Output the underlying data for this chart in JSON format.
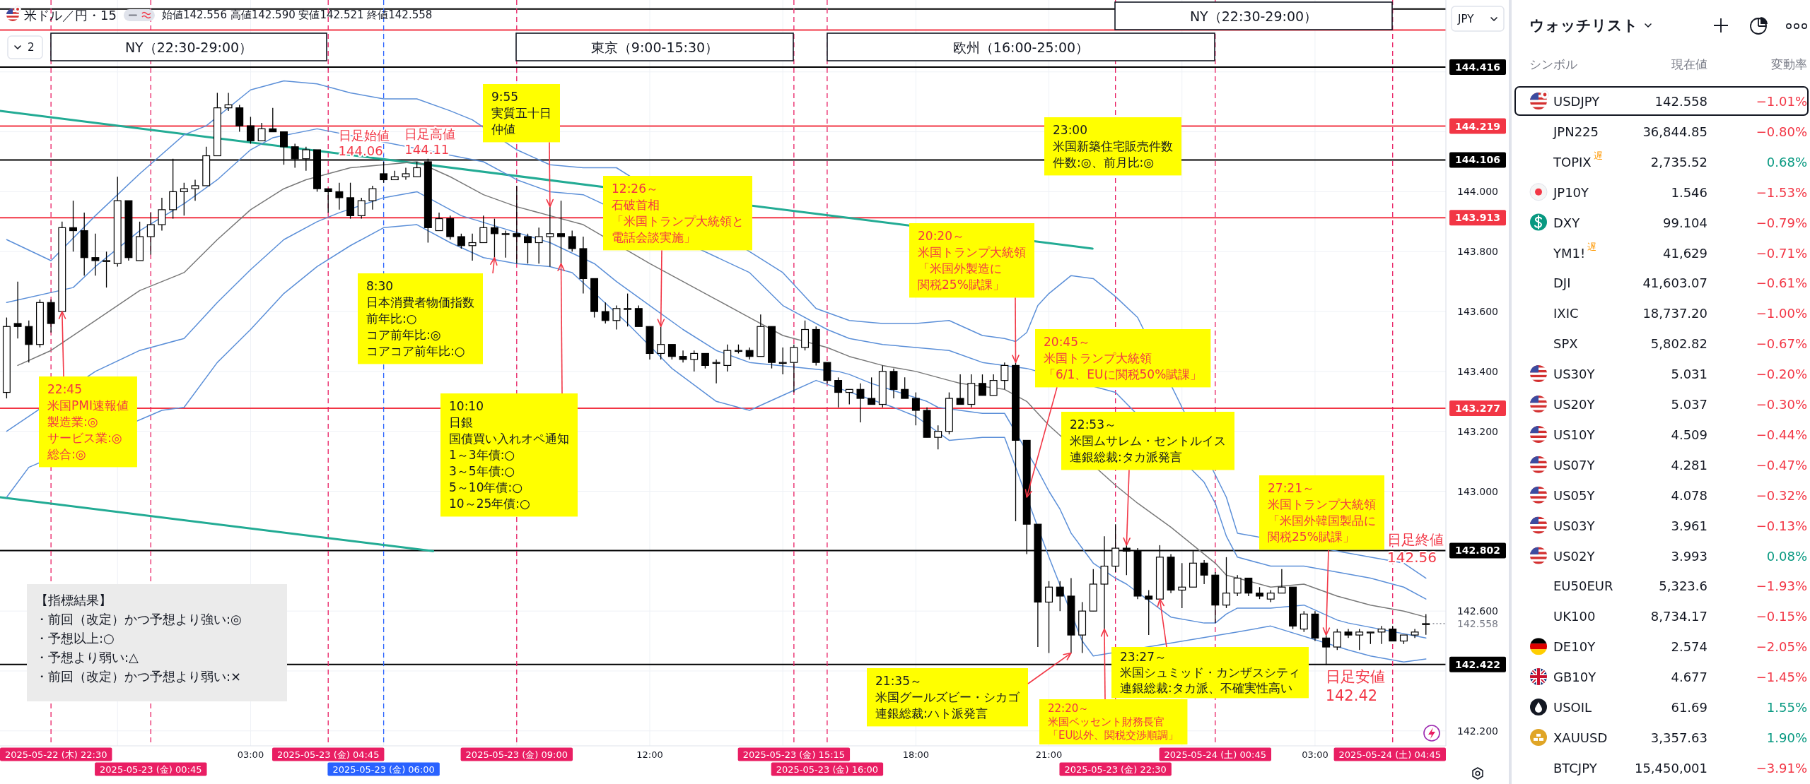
{
  "chart_data": [
    {
      "type": "candlestick",
      "title": "米ドル／円・15",
      "subtitle": "始値142.556 高値142.590 安値142.521 終値142.558",
      "ylabel": "JPY",
      "x": [
        "2025-05-22T21:30",
        "2025-05-22T21:45",
        "2025-05-22T22:00",
        "2025-05-22T22:15",
        "2025-05-22T22:30",
        "2025-05-22T22:45",
        "2025-05-22T23:00",
        "2025-05-22T23:15",
        "2025-05-22T23:30",
        "2025-05-22T23:45",
        "2025-05-23T00:00",
        "2025-05-23T00:15",
        "2025-05-23T00:30",
        "2025-05-23T00:45",
        "2025-05-23T01:00",
        "2025-05-23T01:15",
        "2025-05-23T01:30",
        "2025-05-23T01:45",
        "2025-05-23T02:00",
        "2025-05-23T02:15",
        "2025-05-23T02:30",
        "2025-05-23T02:45",
        "2025-05-23T03:00",
        "2025-05-23T03:15",
        "2025-05-23T03:30",
        "2025-05-23T03:45",
        "2025-05-23T04:00",
        "2025-05-23T04:15",
        "2025-05-23T04:30",
        "2025-05-23T04:45",
        "2025-05-23T05:00",
        "2025-05-23T05:15",
        "2025-05-23T05:30",
        "2025-05-23T05:45",
        "2025-05-23T06:00",
        "2025-05-23T06:15",
        "2025-05-23T06:30",
        "2025-05-23T06:45",
        "2025-05-23T07:00",
        "2025-05-23T07:15",
        "2025-05-23T07:30",
        "2025-05-23T07:45",
        "2025-05-23T08:00",
        "2025-05-23T08:15",
        "2025-05-23T08:30",
        "2025-05-23T08:45",
        "2025-05-23T09:00",
        "2025-05-23T09:15",
        "2025-05-23T09:30",
        "2025-05-23T09:45",
        "2025-05-23T10:00",
        "2025-05-23T10:15",
        "2025-05-23T10:30",
        "2025-05-23T10:45",
        "2025-05-23T11:00",
        "2025-05-23T11:15",
        "2025-05-23T11:30",
        "2025-05-23T11:45",
        "2025-05-23T12:00",
        "2025-05-23T12:15",
        "2025-05-23T12:30",
        "2025-05-23T12:45",
        "2025-05-23T13:00",
        "2025-05-23T13:15",
        "2025-05-23T13:30",
        "2025-05-23T13:45",
        "2025-05-23T14:00",
        "2025-05-23T14:15",
        "2025-05-23T14:30",
        "2025-05-23T14:45",
        "2025-05-23T15:00",
        "2025-05-23T15:15",
        "2025-05-23T15:30",
        "2025-05-23T15:45",
        "2025-05-23T16:00",
        "2025-05-23T16:15",
        "2025-05-23T16:30",
        "2025-05-23T16:45",
        "2025-05-23T17:00",
        "2025-05-23T17:15",
        "2025-05-23T17:30",
        "2025-05-23T17:45",
        "2025-05-23T18:00",
        "2025-05-23T18:15",
        "2025-05-23T18:30",
        "2025-05-23T18:45",
        "2025-05-23T19:00",
        "2025-05-23T19:15",
        "2025-05-23T19:30",
        "2025-05-23T19:45",
        "2025-05-23T20:00",
        "2025-05-23T20:15",
        "2025-05-23T20:30",
        "2025-05-23T20:45",
        "2025-05-23T21:00",
        "2025-05-23T21:15",
        "2025-05-23T21:30",
        "2025-05-23T21:45",
        "2025-05-23T22:00",
        "2025-05-23T22:15",
        "2025-05-23T22:30",
        "2025-05-23T22:45",
        "2025-05-23T23:00",
        "2025-05-23T23:15",
        "2025-05-23T23:30",
        "2025-05-23T23:45",
        "2025-05-24T00:00",
        "2025-05-24T00:15",
        "2025-05-24T00:30",
        "2025-05-24T00:45",
        "2025-05-24T01:00",
        "2025-05-24T01:15",
        "2025-05-24T01:30",
        "2025-05-24T01:45",
        "2025-05-24T02:00",
        "2025-05-24T02:15",
        "2025-05-24T02:30",
        "2025-05-24T02:45",
        "2025-05-24T03:00",
        "2025-05-24T03:15",
        "2025-05-24T03:30",
        "2025-05-24T03:45",
        "2025-05-24T04:00",
        "2025-05-24T04:15",
        "2025-05-24T04:30",
        "2025-05-24T04:45",
        "2025-05-24T05:00",
        "2025-05-24T05:15",
        "2025-05-24T05:30"
      ],
      "ohlc": [
        [
          143.33,
          143.58,
          143.31,
          143.55
        ],
        [
          143.56,
          143.7,
          143.51,
          143.55
        ],
        [
          143.55,
          143.57,
          143.43,
          143.49
        ],
        [
          143.49,
          143.64,
          143.48,
          143.63
        ],
        [
          143.63,
          143.64,
          143.53,
          143.56
        ],
        [
          143.6,
          143.9,
          143.6,
          143.88
        ],
        [
          143.88,
          143.97,
          143.8,
          143.87
        ],
        [
          143.87,
          143.93,
          143.72,
          143.78
        ],
        [
          143.78,
          143.86,
          143.72,
          143.77
        ],
        [
          143.77,
          143.8,
          143.68,
          143.77
        ],
        [
          143.76,
          144.05,
          143.75,
          143.97
        ],
        [
          143.97,
          143.97,
          143.77,
          143.78
        ],
        [
          143.77,
          143.9,
          143.77,
          143.85
        ],
        [
          143.85,
          143.93,
          143.79,
          143.89
        ],
        [
          143.89,
          143.98,
          143.87,
          143.94
        ],
        [
          143.94,
          144.11,
          143.91,
          144
        ],
        [
          144,
          144.03,
          143.92,
          144.01
        ],
        [
          144.01,
          144.04,
          143.97,
          144.02
        ],
        [
          144.02,
          144.15,
          144.02,
          144.12
        ],
        [
          144.12,
          144.33,
          144.12,
          144.28
        ],
        [
          144.28,
          144.33,
          144.27,
          144.29
        ],
        [
          144.28,
          144.29,
          144.2,
          144.22
        ],
        [
          144.22,
          144.25,
          144.16,
          144.17
        ],
        [
          144.17,
          144.23,
          144.17,
          144.21
        ],
        [
          144.21,
          144.28,
          144.2,
          144.2
        ],
        [
          144.2,
          144.2,
          144.09,
          144.15
        ],
        [
          144.15,
          144.16,
          144.08,
          144.11
        ],
        [
          144.11,
          144.15,
          144.07,
          144.14
        ],
        [
          144.14,
          144.14,
          144,
          144.01
        ],
        [
          144.01,
          144.01,
          143.93,
          144
        ],
        [
          144,
          144.03,
          143.94,
          143.98
        ],
        [
          143.98,
          144.03,
          143.91,
          143.92
        ],
        [
          143.92,
          143.98,
          143.91,
          143.97
        ],
        [
          143.97,
          144.02,
          143.94,
          144.01
        ],
        [
          144.06,
          144.1,
          144.03,
          144.04
        ],
        [
          144.04,
          144.07,
          144.04,
          144.05
        ],
        [
          144.05,
          144.08,
          144.04,
          144.06
        ],
        [
          144.05,
          144.1,
          144.05,
          144.08
        ],
        [
          144.1,
          144.11,
          143.83,
          143.88
        ],
        [
          143.87,
          143.93,
          143.87,
          143.91
        ],
        [
          143.91,
          143.92,
          143.84,
          143.85
        ],
        [
          143.85,
          143.86,
          143.81,
          143.82
        ],
        [
          143.82,
          143.86,
          143.77,
          143.83
        ],
        [
          143.83,
          143.92,
          143.83,
          143.88
        ],
        [
          143.88,
          143.91,
          143.78,
          143.86
        ],
        [
          143.86,
          143.87,
          143.78,
          143.86
        ],
        [
          143.86,
          144.02,
          143.76,
          143.85
        ],
        [
          143.85,
          143.86,
          143.76,
          143.83
        ],
        [
          143.83,
          143.88,
          143.76,
          143.85
        ],
        [
          143.85,
          143.95,
          143.75,
          143.86
        ],
        [
          143.86,
          143.97,
          143.76,
          143.85
        ],
        [
          143.85,
          143.87,
          143.8,
          143.81
        ],
        [
          143.81,
          143.85,
          143.66,
          143.71
        ],
        [
          143.71,
          143.71,
          143.58,
          143.6
        ],
        [
          143.6,
          143.63,
          143.56,
          143.57
        ],
        [
          143.57,
          143.62,
          143.54,
          143.61
        ],
        [
          143.61,
          143.66,
          143.55,
          143.61
        ],
        [
          143.61,
          143.62,
          143.55,
          143.55
        ],
        [
          143.55,
          143.55,
          143.44,
          143.46
        ],
        [
          143.46,
          143.55,
          143.44,
          143.49
        ],
        [
          143.49,
          143.49,
          143.44,
          143.45
        ],
        [
          143.45,
          143.47,
          143.43,
          143.44
        ],
        [
          143.44,
          143.47,
          143.4,
          143.46
        ],
        [
          143.46,
          143.46,
          143.41,
          143.42
        ],
        [
          143.43,
          143.44,
          143.36,
          143.43
        ],
        [
          143.42,
          143.49,
          143.4,
          143.47
        ],
        [
          143.47,
          143.49,
          143.46,
          143.47
        ],
        [
          143.47,
          143.48,
          143.44,
          143.45
        ],
        [
          143.45,
          143.59,
          143.45,
          143.55
        ],
        [
          143.55,
          143.55,
          143.41,
          143.43
        ],
        [
          143.43,
          143.48,
          143.39,
          143.43
        ],
        [
          143.43,
          143.49,
          143.33,
          143.48
        ],
        [
          143.48,
          143.57,
          143.47,
          143.54
        ],
        [
          143.54,
          143.55,
          143.42,
          143.43
        ],
        [
          143.43,
          143.43,
          143.36,
          143.37
        ],
        [
          143.37,
          143.38,
          143.28,
          143.33
        ],
        [
          143.33,
          143.34,
          143.29,
          143.34
        ],
        [
          143.34,
          143.36,
          143.23,
          143.31
        ],
        [
          143.31,
          143.38,
          143.29,
          143.29
        ],
        [
          143.29,
          143.42,
          143.28,
          143.4
        ],
        [
          143.4,
          143.41,
          143.31,
          143.34
        ],
        [
          143.34,
          143.38,
          143.31,
          143.31
        ],
        [
          143.31,
          143.33,
          143.22,
          143.27
        ],
        [
          143.27,
          143.28,
          143.18,
          143.18
        ],
        [
          143.18,
          143.22,
          143.14,
          143.2
        ],
        [
          143.2,
          143.33,
          143.19,
          143.31
        ],
        [
          143.31,
          143.39,
          143.29,
          143.29
        ],
        [
          143.29,
          143.39,
          143.28,
          143.36
        ],
        [
          143.36,
          143.39,
          143.32,
          143.32
        ],
        [
          143.32,
          143.39,
          143.32,
          143.37
        ],
        [
          143.37,
          143.43,
          143.34,
          143.42
        ],
        [
          143.42,
          143.43,
          142.9,
          143.17
        ],
        [
          143.17,
          143.17,
          142.79,
          142.89
        ],
        [
          142.89,
          142.89,
          142.48,
          142.63
        ],
        [
          142.63,
          142.7,
          142.46,
          142.68
        ],
        [
          142.68,
          142.7,
          142.6,
          142.65
        ],
        [
          142.65,
          142.71,
          142.46,
          142.52
        ],
        [
          142.52,
          142.63,
          142.46,
          142.6
        ],
        [
          142.6,
          142.74,
          142.6,
          142.69
        ],
        [
          142.69,
          142.85,
          142.54,
          142.75
        ],
        [
          142.75,
          142.89,
          142.73,
          142.81
        ],
        [
          142.81,
          142.82,
          142.72,
          142.8
        ],
        [
          142.8,
          142.81,
          142.64,
          142.65
        ],
        [
          142.65,
          142.67,
          142.52,
          142.64
        ],
        [
          142.64,
          142.82,
          142.64,
          142.78
        ],
        [
          142.78,
          142.79,
          142.66,
          142.67
        ],
        [
          142.67,
          142.76,
          142.61,
          142.68
        ],
        [
          142.68,
          142.8,
          142.68,
          142.76
        ],
        [
          142.76,
          142.77,
          142.69,
          142.72
        ],
        [
          142.72,
          142.73,
          142.56,
          142.62
        ],
        [
          142.62,
          142.78,
          142.61,
          142.66
        ],
        [
          142.66,
          142.72,
          142.65,
          142.71
        ],
        [
          142.71,
          142.71,
          142.65,
          142.66
        ],
        [
          142.66,
          142.68,
          142.64,
          142.65
        ],
        [
          142.64,
          142.67,
          142.63,
          142.66
        ],
        [
          142.66,
          142.74,
          142.66,
          142.68
        ],
        [
          142.68,
          142.68,
          142.54,
          142.55
        ],
        [
          142.54,
          142.6,
          142.53,
          142.59
        ],
        [
          142.59,
          142.6,
          142.5,
          142.51
        ],
        [
          142.51,
          142.52,
          142.42,
          142.48
        ],
        [
          142.48,
          142.54,
          142.47,
          142.53
        ],
        [
          142.53,
          142.54,
          142.51,
          142.52
        ],
        [
          142.52,
          142.54,
          142.47,
          142.53
        ],
        [
          142.53,
          142.53,
          142.49,
          142.53
        ],
        [
          142.53,
          142.55,
          142.49,
          142.54
        ],
        [
          142.54,
          142.55,
          142.5,
          142.5
        ],
        [
          142.5,
          142.52,
          142.49,
          142.52
        ],
        [
          142.52,
          142.54,
          142.51,
          142.53
        ],
        [
          142.556,
          142.59,
          142.521,
          142.558
        ]
      ],
      "xlim": [
        "2025-05-22T21:21",
        "2025-05-24T05:57"
      ],
      "xticks": [
        {
          "value": "2025-05-23T00:00",
          "label": null
        },
        {
          "value": "2025-05-23T03:00",
          "label": "03:00"
        },
        {
          "value": "2025-05-23T06:00",
          "label": null
        },
        {
          "value": "2025-05-23T09:00",
          "label": null
        },
        {
          "value": "2025-05-23T12:00",
          "label": "12:00"
        },
        {
          "value": "2025-05-23T15:00",
          "label": null
        },
        {
          "value": "2025-05-23T18:00",
          "label": "18:00"
        },
        {
          "value": "2025-05-23T21:00",
          "label": "21:00"
        },
        {
          "value": "2025-05-24T00:00",
          "label": null
        },
        {
          "value": "2025-05-24T03:00",
          "label": "03:00"
        }
      ],
      "ylim": [
        142.15,
        144.64
      ],
      "yticks": [
        {
          "value": 142.2,
          "label": "142.200"
        },
        {
          "value": 142.4,
          "label": null
        },
        {
          "value": 142.6,
          "label": "142.600"
        },
        {
          "value": 142.8,
          "label": null
        },
        {
          "value": 143,
          "label": "143.000"
        },
        {
          "value": 143.2,
          "label": "143.200"
        },
        {
          "value": 143.4,
          "label": "143.400"
        },
        {
          "value": 143.6,
          "label": "143.600"
        },
        {
          "value": 143.8,
          "label": "143.800"
        },
        {
          "value": 144,
          "label": "144.000"
        },
        {
          "value": 144.2,
          "label": null
        },
        {
          "value": 144.4,
          "label": null
        }
      ],
      "grid": true,
      "series": [
        {
          "type": "line",
          "color": "#22ab94",
          "x": [
            "2025-05-22T21:21",
            "2025-05-23T21:59"
          ],
          "values": [
            144.27,
            143.81
          ]
        },
        {
          "type": "line",
          "color": "#22ab94",
          "x": [
            "2025-05-22T21:21",
            "2025-05-23T07:07"
          ],
          "values": [
            142.98,
            142.8
          ]
        },
        {
          "type": "line",
          "color": "#787878",
          "x": [
            "2025-05-22T21:45",
            "2025-05-22T22:30",
            "2025-05-22T23:30",
            "2025-05-23T00:30",
            "2025-05-23T01:30",
            "2025-05-23T02:15",
            "2025-05-23T03:00",
            "2025-05-23T03:45",
            "2025-05-23T04:15",
            "2025-05-23T05:15",
            "2025-05-23T06:00",
            "2025-05-23T06:45",
            "2025-05-23T07:30",
            "2025-05-23T08:15",
            "2025-05-23T09:00",
            "2025-05-23T09:45",
            "2025-05-23T10:30",
            "2025-05-23T12:00",
            "2025-05-23T12:45",
            "2025-05-23T13:30",
            "2025-05-23T14:15",
            "2025-05-23T15:00",
            "2025-05-23T16:00",
            "2025-05-23T16:30",
            "2025-05-23T17:15",
            "2025-05-23T18:00",
            "2025-05-23T18:45",
            "2025-05-23T19:00",
            "2025-05-23T20:00",
            "2025-05-23T20:30",
            "2025-05-23T20:45",
            "2025-05-23T21:00",
            "2025-05-23T22:30",
            "2025-05-23T23:00",
            "2025-05-23T23:45",
            "2025-05-24T00:30",
            "2025-05-24T00:45",
            "2025-05-24T01:00",
            "2025-05-24T02:00",
            "2025-05-24T02:45",
            "2025-05-24T03:30",
            "2025-05-24T04:15",
            "2025-05-24T05:00",
            "2025-05-24T05:30"
          ],
          "values": [
            143.42,
            143.47,
            143.57,
            143.67,
            143.73,
            143.84,
            143.94,
            144.01,
            144.04,
            144.08,
            144.09,
            144.1,
            144.05,
            143.99,
            143.95,
            143.92,
            143.89,
            143.76,
            143.7,
            143.64,
            143.58,
            143.52,
            143.48,
            143.45,
            143.42,
            143.4,
            143.37,
            143.36,
            143.34,
            143.3,
            143.26,
            143.22,
            143.02,
            142.96,
            142.88,
            142.79,
            142.76,
            142.72,
            142.68,
            142.69,
            142.65,
            142.62,
            142.6,
            142.58
          ]
        },
        {
          "type": "line",
          "color": "#5b8fd8",
          "x": [
            "2025-05-22T21:30",
            "2025-05-22T23:00",
            "2025-05-22T23:30",
            "2025-05-23T00:30",
            "2025-05-23T01:30",
            "2025-05-23T02:15",
            "2025-05-23T03:00",
            "2025-05-23T03:30",
            "2025-05-23T04:30",
            "2025-05-23T08:15",
            "2025-05-23T09:00",
            "2025-05-23T09:45",
            "2025-05-23T10:30",
            "2025-05-23T14:15",
            "2025-05-23T15:00",
            "2025-05-23T16:00",
            "2025-05-23T16:30",
            "2025-05-23T17:15",
            "2025-05-23T18:00",
            "2025-05-23T18:45",
            "2025-05-23T19:30",
            "2025-05-23T20:30",
            "2025-05-23T22:30",
            "2025-05-24T00:30",
            "2025-05-24T00:45",
            "2025-05-24T01:00",
            "2025-05-24T01:15",
            "2025-05-24T02:00",
            "2025-05-24T02:45",
            "2025-05-24T03:30",
            "2025-05-24T04:15",
            "2025-05-24T05:00",
            "2025-05-24T05:30"
          ],
          "values": [
            143.63,
            143.68,
            143.75,
            143.87,
            143.96,
            144.04,
            144.14,
            144.18,
            144.21,
            144.1,
            144.04,
            144,
            143.99,
            143.73,
            143.62,
            143.54,
            143.51,
            143.49,
            143.48,
            143.47,
            143.43,
            143.41,
            143.33,
            143.03,
            142.96,
            142.85,
            142.78,
            142.75,
            142.75,
            142.73,
            142.71,
            142.68,
            142.64
          ]
        },
        {
          "type": "line",
          "color": "#5b8fd8",
          "x": [
            "2025-05-22T21:30",
            "2025-05-22T22:30",
            "2025-05-22T23:30",
            "2025-05-23T00:30",
            "2025-05-23T01:30",
            "2025-05-23T02:00",
            "2025-05-23T03:00",
            "2025-05-23T03:45",
            "2025-05-23T04:30",
            "2025-05-23T05:15",
            "2025-05-23T06:00",
            "2025-05-23T06:45",
            "2025-05-23T07:30",
            "2025-05-23T08:00",
            "2025-05-23T09:00",
            "2025-05-23T09:45",
            "2025-05-23T10:30",
            "2025-05-23T11:15",
            "2025-05-23T15:00",
            "2025-05-23T15:45",
            "2025-05-23T16:30",
            "2025-05-23T17:15",
            "2025-05-23T18:00",
            "2025-05-23T18:45",
            "2025-05-23T19:30",
            "2025-05-23T20:00",
            "2025-05-23T20:15",
            "2025-05-23T20:30",
            "2025-05-23T20:45",
            "2025-05-23T21:00",
            "2025-05-23T21:15",
            "2025-05-23T21:30",
            "2025-05-23T22:00",
            "2025-05-23T22:30",
            "2025-05-23T23:00",
            "2025-05-24T01:00",
            "2025-05-24T01:15",
            "2025-05-24T05:00",
            "2025-05-24T05:30"
          ],
          "values": [
            143.84,
            143.77,
            143.92,
            144.06,
            144.19,
            144.22,
            144.34,
            144.37,
            144.36,
            144.33,
            144.31,
            144.31,
            144.27,
            144.24,
            144.14,
            144.09,
            144.08,
            144.08,
            143.73,
            143.61,
            143.57,
            143.56,
            143.56,
            143.57,
            143.52,
            143.51,
            143.5,
            143.53,
            143.62,
            143.66,
            143.69,
            143.72,
            143.71,
            143.65,
            143.58,
            142.98,
            142.86,
            142.76,
            142.71
          ]
        },
        {
          "type": "line",
          "color": "#5b8fd8",
          "x": [
            "2025-05-22T21:30",
            "2025-05-22T23:30",
            "2025-05-23T00:30",
            "2025-05-23T01:30",
            "2025-05-23T02:15",
            "2025-05-23T03:00",
            "2025-05-23T03:45",
            "2025-05-23T04:30",
            "2025-05-23T05:00",
            "2025-05-23T06:00",
            "2025-05-23T06:45",
            "2025-05-23T07:30",
            "2025-05-23T07:45",
            "2025-05-23T09:45",
            "2025-05-23T10:45",
            "2025-05-23T11:15",
            "2025-05-23T12:00",
            "2025-05-23T12:45",
            "2025-05-23T13:30",
            "2025-05-23T14:15",
            "2025-05-23T16:15",
            "2025-05-23T16:30",
            "2025-05-23T17:00",
            "2025-05-23T18:15",
            "2025-05-23T18:30",
            "2025-05-23T19:30",
            "2025-05-23T20:00",
            "2025-05-23T20:45",
            "2025-05-23T21:00",
            "2025-05-23T21:15",
            "2025-05-23T21:30",
            "2025-05-23T22:00",
            "2025-05-23T22:30",
            "2025-05-23T22:45",
            "2025-05-23T23:45",
            "2025-05-24T00:30",
            "2025-05-24T00:45",
            "2025-05-24T01:00",
            "2025-05-24T01:15",
            "2025-05-24T02:00",
            "2025-05-24T02:45",
            "2025-05-24T03:30",
            "2025-05-24T03:45",
            "2025-05-24T05:30"
          ],
          "values": [
            143.2,
            143.4,
            143.47,
            143.51,
            143.63,
            143.74,
            143.84,
            143.9,
            143.93,
            143.98,
            144,
            143.94,
            143.92,
            143.83,
            143.76,
            143.7,
            143.62,
            143.54,
            143.47,
            143.43,
            143.4,
            143.39,
            143.36,
            143.3,
            143.28,
            143.26,
            143.26,
            143.07,
            143,
            142.94,
            142.86,
            142.76,
            142.71,
            142.69,
            142.58,
            142.56,
            142.56,
            142.59,
            142.61,
            142.61,
            142.62,
            142.57,
            142.56,
            142.51
          ]
        },
        {
          "type": "line",
          "color": "#5b8fd8",
          "x": [
            "2025-05-22T21:30",
            "2025-05-22T22:00",
            "2025-05-23T01:00",
            "2025-05-23T01:30",
            "2025-05-23T02:15",
            "2025-05-23T03:00",
            "2025-05-23T03:45",
            "2025-05-23T04:30",
            "2025-05-23T05:15",
            "2025-05-23T06:00",
            "2025-05-23T06:45",
            "2025-05-23T07:30",
            "2025-05-23T08:15",
            "2025-05-23T09:00",
            "2025-05-23T09:45",
            "2025-05-23T10:15",
            "2025-05-23T11:30",
            "2025-05-23T12:30",
            "2025-05-23T13:30",
            "2025-05-23T14:15",
            "2025-05-23T15:00",
            "2025-05-23T15:45",
            "2025-05-23T17:30",
            "2025-05-23T18:00",
            "2025-05-23T18:45",
            "2025-05-23T19:30",
            "2025-05-23T20:00",
            "2025-05-23T21:00",
            "2025-05-23T21:45",
            "2025-05-23T22:00",
            "2025-05-24T01:15",
            "2025-05-24T02:00",
            "2025-05-24T03:45",
            "2025-05-24T04:15",
            "2025-05-24T05:00",
            "2025-05-24T05:30"
          ],
          "values": [
            142.98,
            143.08,
            143.27,
            143.28,
            143.43,
            143.54,
            143.66,
            143.75,
            143.82,
            143.88,
            143.89,
            143.83,
            143.78,
            143.76,
            143.75,
            143.73,
            143.56,
            143.41,
            143.3,
            143.27,
            143.32,
            143.37,
            143.28,
            143.25,
            143.17,
            143.18,
            143.18,
            142.78,
            142.5,
            142.45,
            142.53,
            142.55,
            142.47,
            142.45,
            142.43,
            142.44
          ]
        }
      ],
      "ref_lines": [
        {
          "axis": "y",
          "value": 144.61,
          "color": "#000000"
        },
        {
          "axis": "y",
          "value": 144.54,
          "color": "#f23645"
        },
        {
          "axis": "y",
          "value": 144.416,
          "label": "144.416",
          "color": "#000000"
        },
        {
          "axis": "y",
          "value": 144.219,
          "label": "144.219",
          "color": "#f23645"
        },
        {
          "axis": "y",
          "value": 144.106,
          "label": "144.106",
          "color": "#000000"
        },
        {
          "axis": "y",
          "value": 143.913,
          "label": "143.913",
          "color": "#f23645"
        },
        {
          "axis": "y",
          "value": 143.277,
          "label": "143.277",
          "color": "#f23645"
        },
        {
          "axis": "y",
          "value": 142.802,
          "label": "142.802",
          "color": "#000000"
        },
        {
          "axis": "y",
          "value": 142.422,
          "label": "142.422",
          "color": "#000000"
        },
        {
          "axis": "y",
          "value": 142.558,
          "label": "142.558",
          "color": "#787b86",
          "line_style": "dotted"
        },
        {
          "axis": "x",
          "value": "2025-05-22T22:30",
          "label": "2025-05-22 (木) 22:30",
          "color": "#e91e63",
          "line_style": "dashed"
        },
        {
          "axis": "x",
          "value": "2025-05-23T00:45",
          "label": "2025-05-23 (金) 00:45",
          "color": "#e91e63",
          "line_style": "dashed"
        },
        {
          "axis": "x",
          "value": "2025-05-23T04:45",
          "label": "2025-05-23 (金) 04:45",
          "color": "#e91e63",
          "line_style": "dashed"
        },
        {
          "axis": "x",
          "value": "2025-05-23T06:00",
          "label": "2025-05-23 (金) 06:00",
          "color": "#2962ff",
          "line_style": "dashed"
        },
        {
          "axis": "x",
          "value": "2025-05-23T09:00",
          "label": "2025-05-23 (金) 09:00",
          "color": "#e91e63",
          "line_style": "dashed"
        },
        {
          "axis": "x",
          "value": "2025-05-23T15:15",
          "label": "2025-05-23 (金) 15:15",
          "color": "#e91e63",
          "line_style": "dashed"
        },
        {
          "axis": "x",
          "value": "2025-05-23T16:00",
          "label": "2025-05-23 (金) 16:00",
          "color": "#e91e63",
          "line_style": "dashed"
        },
        {
          "axis": "x",
          "value": "2025-05-23T22:30",
          "label": "2025-05-23 (金) 22:30",
          "color": "#e91e63",
          "line_style": "dashed"
        },
        {
          "axis": "x",
          "value": "2025-05-24T00:45",
          "label": "2025-05-24 (土) 00:45",
          "color": "#e91e63",
          "line_style": "dashed"
        },
        {
          "axis": "x",
          "value": "2025-05-24T04:45",
          "label": "2025-05-24 (土) 04:45",
          "color": "#e91e63",
          "line_style": "dashed"
        }
      ],
      "annotations": [
        {
          "text": "22:45米国PMI速報値製造業:◎サービス業:◎総合:◎",
          "x": "2025-05-22T22:45",
          "y": 143.6
        },
        {
          "text": "8:30日本消費者物価指数前年比:○コア前年比:◎コアコア前年比:○",
          "x": "2025-05-23T08:30",
          "y": 143.78
        },
        {
          "text": "9:55実質五十日仲値",
          "x": "2025-05-23T09:45",
          "y": 143.95
        },
        {
          "text": "10:10日銀国債買い入れオペ通知1～3年債:○3～5年債:○5～10年債:○10～25年債:○",
          "x": "2025-05-23T10:00",
          "y": 143.76
        },
        {
          "text": "12:26～石破首相「米国トランプ大統領と電話会談実施」",
          "x": "2025-05-23T12:15",
          "y": 143.55
        },
        {
          "text": "20:20～米国トランプ大統領「米国外製造に関税25%賦課」",
          "x": "2025-05-23T20:15",
          "y": 143.43
        },
        {
          "text": "20:45～米国トランプ大統領「6/1、EUに関税50%賦課」",
          "x": "2025-05-23T20:30",
          "y": 142.98
        },
        {
          "text": "22:53～米国ムサレム・セントルイス連銀総裁:タカ派発言",
          "x": "2025-05-23T22:45",
          "y": 142.82
        },
        {
          "text": "27:21～米国トランプ大統領「米国外韓国製品に関税25%賦課」",
          "x": "2025-05-24T03:15",
          "y": 142.52
        },
        {
          "text": "21:35～米国グールズビー・シカゴ連銀総裁:ハト派発言",
          "x": "2025-05-23T21:30",
          "y": 142.46
        },
        {
          "text": "22:20～米国ベッセント財務長官「EU以外、関税交渉順調」",
          "x": "2025-05-23T22:15",
          "y": 142.54
        },
        {
          "text": "23:27～米国シュミッド・カンザスシティ連銀総裁:タカ派、不確実性高い",
          "x": "2025-05-23T23:30",
          "y": 142.64
        },
        "23:00米国新築住宅販売件数件数:◎、前月比:◎",
        {
          "text": "日足始値144.06",
          "x": "2025-05-23T06:00",
          "y": 144.06
        },
        {
          "text": "日足高値144.11",
          "x": "2025-05-23T07:00",
          "y": 144.11
        },
        "日足終値142.56",
        {
          "text": "日足安値142.42",
          "x": "2025-05-24T03:15",
          "y": 142.42
        },
        "【指標結果】・前回（改定）かつ予想より強い:◎・予想以上:○・予想より弱い:△・前回（改定）かつ予想より弱い:×",
        "2",
        "NY（22:30-29:00）",
        "東京（9:00-15:30）",
        "欧州（16:00-25:00）",
        "NY（22:30-29:00）"
      ]
    },
    {
      "type": "other",
      "title": "ウォッチリスト",
      "xlabel": "シンボル",
      "categories": [
        "USDJPY",
        "JPN225",
        "TOPIX",
        "JP10Y",
        "DXY",
        "YM1!",
        "DJI",
        "IXIC",
        "SPX",
        "US30Y",
        "US20Y",
        "US10Y",
        "US07Y",
        "US05Y",
        "US03Y",
        "US02Y",
        "EU50EUR",
        "UK100",
        "DE10Y",
        "GB10Y",
        "USOIL",
        "XAUUSD",
        "BTCJPY"
      ],
      "series": [
        {
          "name": "現在値",
          "values": [
            142.558,
            36844.85,
            2735.52,
            1.546,
            99.104,
            41629,
            41603.07,
            18737.2,
            5802.82,
            5.031,
            5.037,
            4.509,
            4.281,
            4.078,
            3.961,
            3.993,
            5323.6,
            8734.17,
            2.574,
            4.677,
            61.69,
            3357.63,
            15450001
          ],
          "value_labels": [
            "142.558",
            "36,844.85",
            "2,735.52",
            "1.546",
            "99.104",
            "41,629",
            "41,603.07",
            "18,737.20",
            "5,802.82",
            "5.031",
            "5.037",
            "4.509",
            "4.281",
            "4.078",
            "3.961",
            "3.993",
            "5,323.6",
            "8,734.17",
            "2.574",
            "4.677",
            "61.69",
            "3,357.63",
            "15,450,001"
          ]
        },
        {
          "name": "変動率",
          "values": [
            -1.01,
            -0.8,
            0.68,
            -1.53,
            -0.79,
            -0.71,
            -0.61,
            -1,
            -0.67,
            -0.2,
            -0.3,
            -0.44,
            -0.47,
            -0.32,
            -0.13,
            0.08,
            -1.93,
            -0.15,
            -2.05,
            -1.45,
            1.55,
            1.9,
            -3.91
          ],
          "value_labels": [
            "−1.01%",
            "−0.80%",
            "0.68%",
            "−1.53%",
            "−0.79%",
            "−0.71%",
            "−0.61%",
            "−1.00%",
            "−0.67%",
            "−0.20%",
            "−0.30%",
            "−0.44%",
            "−0.47%",
            "−0.32%",
            "−0.13%",
            "0.08%",
            "−1.93%",
            "−0.15%",
            "−2.05%",
            "−1.45%",
            "1.55%",
            "1.90%",
            "−3.91%"
          ]
        }
      ],
      "annotations": [
        {
          "text": "遅",
          "x": "TOPIX"
        },
        {
          "text": "遅",
          "x": "YM1!"
        }
      ]
    }
  ]
}
